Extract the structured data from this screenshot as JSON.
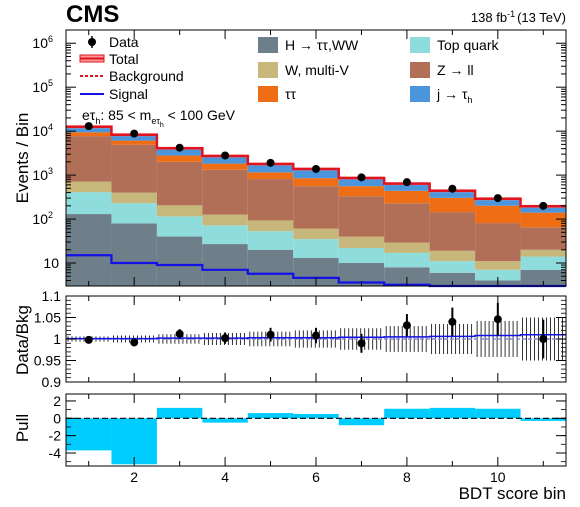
{
  "header": {
    "experiment": "CMS",
    "lumi": "138 fb",
    "lumi_exp": "-1",
    "energy": "(13 TeV)"
  },
  "legend": {
    "data": "Data",
    "total": "Total",
    "background": "Background",
    "signal": "Signal",
    "h_tautau_ww": "H → ττ,WW",
    "w_multiv": "W, multi-V",
    "tautau": "ττ",
    "top": "Top quark",
    "z_ll": "Z → ll",
    "jet_fake": "j → τ",
    "jet_fake_sub": "h"
  },
  "category": {
    "channel": "eτ",
    "channel_sub": "h",
    "range_pre": ": 85 < m",
    "range_sub": "eτ",
    "range_subsub": "h",
    "range_post": " < 100 GeV"
  },
  "colors": {
    "h_tautau_ww": "#6f7f89",
    "top": "#8fdcdc",
    "w_multiv": "#c7b77b",
    "z_ll": "#b16f58",
    "tautau": "#ef6d14",
    "jet_fake": "#4a95db",
    "total": "#e0141e",
    "signal": "#1212e6",
    "pull": "#00ccff"
  },
  "chart_data": [
    {
      "type": "bar",
      "stacked": true,
      "ylabel": "Events / Bin",
      "yscale": "log",
      "ylim": [
        3,
        2000000
      ],
      "xlim": [
        0.5,
        11.5
      ],
      "x": [
        1,
        2,
        3,
        4,
        5,
        6,
        7,
        8,
        9,
        10,
        11
      ],
      "series": [
        {
          "name": "H → ττ,WW",
          "key": "h_tautau_ww",
          "values": [
            130,
            80,
            40,
            27,
            20,
            13,
            10,
            8,
            6,
            4,
            7
          ]
        },
        {
          "name": "Top quark",
          "key": "top",
          "values": [
            280,
            150,
            75,
            45,
            33,
            22,
            12,
            9,
            5,
            3,
            7
          ]
        },
        {
          "name": "W, multi-V",
          "key": "w_multiv",
          "values": [
            300,
            170,
            90,
            55,
            40,
            26,
            18,
            12,
            8,
            4,
            6
          ]
        },
        {
          "name": "Z → ll",
          "key": "z_ll",
          "values": [
            7000,
            4500,
            1800,
            1200,
            720,
            500,
            290,
            200,
            125,
            70,
            45
          ]
        },
        {
          "name": "ττ",
          "key": "tautau",
          "values": [
            1700,
            1200,
            780,
            500,
            340,
            290,
            230,
            210,
            160,
            120,
            75
          ]
        },
        {
          "name": "j → τh",
          "key": "jet_fake",
          "values": [
            3200,
            2200,
            1300,
            900,
            640,
            530,
            300,
            200,
            140,
            90,
            55
          ]
        }
      ],
      "total": [
        12600,
        8300,
        4080,
        2720,
        1790,
        1380,
        860,
        640,
        440,
        290,
        195
      ],
      "signal": [
        15,
        10,
        9,
        7,
        5.7,
        4.6,
        3.6,
        3.2,
        2.8,
        2.3,
        1.9
      ],
      "data": [
        13000,
        8800,
        4200,
        2800,
        1900,
        1380,
        890,
        690,
        490,
        300,
        200
      ]
    },
    {
      "type": "scatter",
      "ylabel": "Data/Bkg",
      "ylim": [
        0.9,
        1.1
      ],
      "yticks": [
        "0.9",
        "0.95",
        "1",
        "1.05",
        "1.1"
      ],
      "ratio": [
        0.998,
        0.992,
        1.012,
        1.002,
        1.01,
        1.008,
        0.99,
        1.032,
        1.04,
        1.046,
        1.0
      ],
      "ratio_err": [
        0.006,
        0.008,
        0.011,
        0.013,
        0.016,
        0.018,
        0.022,
        0.026,
        0.033,
        0.038,
        0.045
      ],
      "bkg_unc": [
        0.006,
        0.008,
        0.011,
        0.014,
        0.017,
        0.02,
        0.025,
        0.03,
        0.035,
        0.042,
        0.05
      ],
      "signal_plus_bkg": [
        1.001,
        1.001,
        1.002,
        1.002,
        1.003,
        1.003,
        1.004,
        1.005,
        1.006,
        1.008,
        1.01
      ]
    },
    {
      "type": "bar",
      "ylabel": "Pull",
      "ylim": [
        -5.5,
        2.8
      ],
      "yticks": [
        "-4",
        "-2",
        "0",
        "2"
      ],
      "values": [
        -3.7,
        -5.3,
        1.2,
        -0.5,
        0.6,
        0.5,
        -0.8,
        1.1,
        1.2,
        1.1,
        -0.3
      ]
    }
  ],
  "xaxis": {
    "label": "BDT score bin",
    "ticks": [
      "2",
      "4",
      "6",
      "8",
      "10"
    ]
  },
  "main_yticks": [
    "10",
    "10",
    "10",
    "10",
    "10",
    "10"
  ],
  "main_yexp": [
    "",
    "2",
    "3",
    "4",
    "5",
    "6"
  ]
}
